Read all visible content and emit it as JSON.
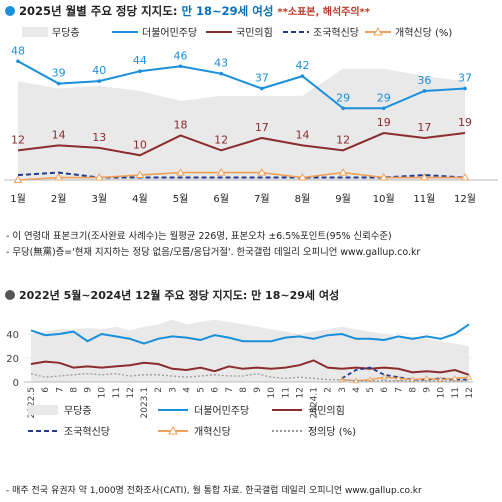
{
  "colors": {
    "none": "#e9e9e9",
    "dpk": "#1a8fdc",
    "ppp": "#8b2d2d",
    "rebuild": "#1f3a93",
    "reform": "#f0a05a",
    "justice": "#9a9a9a",
    "title_blue": "#0d6fb8",
    "title_red": "#c0392b"
  },
  "top_section": {
    "title_bullet_icon": "dot-icon",
    "title": "2025년 월별 주요 정당 지지도: ",
    "title_highlight": "만 18~29세 여성",
    "title_warning": "**소표본, 해석주의**",
    "notes": [
      "- 이 연령대 표본크기(조사완료 사례수)는 월평균 226명, 표본오차 ±6.5%포인트(95% 신뢰수준)",
      "- 무당(無黨)층='현재 지지하는 정당 없음/모름/응답거절'. 한국갤럽 데일리 오피니언 www.gallup.co.kr"
    ]
  },
  "bottom_section": {
    "title_bullet_icon": "dot-icon",
    "title": "2022년 5월~2024년 12월 주요 정당 지지도: 만 18~29세 여성",
    "note": "- 매주 전국 유권자 약 1,000명 전화조사(CATI), 월 통합 자료. 한국갤럽 데일리 오피니언 www.gallup.co.kr"
  },
  "chart_data": [
    {
      "type": "line",
      "title": "2025년 월별 주요 정당 지지도: 만 18~29세 여성",
      "categories": [
        "1월",
        "2월",
        "3월",
        "4월",
        "5월",
        "6월",
        "7월",
        "8월",
        "9월",
        "10월",
        "11월",
        "12월"
      ],
      "legend": [
        "무당층",
        "더불어민주당",
        "국민의힘",
        "조국혁신당",
        "개혁신당 (%)"
      ],
      "legend_position": "top",
      "ylim": [
        0,
        55
      ],
      "grid": false,
      "series": [
        {
          "name": "무당층",
          "kind": "area",
          "values": [
            40,
            37,
            38,
            36,
            32,
            34,
            34,
            34,
            45,
            45,
            42,
            40
          ]
        },
        {
          "name": "더불어민주당",
          "values": [
            48,
            39,
            40,
            44,
            46,
            43,
            37,
            42,
            29,
            29,
            36,
            37
          ],
          "labels": true
        },
        {
          "name": "국민의힘",
          "values": [
            12,
            14,
            13,
            10,
            18,
            12,
            17,
            14,
            12,
            19,
            17,
            19
          ],
          "labels": true
        },
        {
          "name": "조국혁신당",
          "values": [
            2,
            3,
            1,
            1,
            1,
            1,
            1,
            1,
            1,
            1,
            2,
            1
          ]
        },
        {
          "name": "개혁신당 (%)",
          "values": [
            0,
            1,
            1,
            2,
            3,
            3,
            3,
            1,
            3,
            1,
            1,
            1
          ]
        }
      ]
    },
    {
      "type": "line",
      "title": "2022년 5월~2024년 12월 주요 정당 지지도: 만 18~29세 여성",
      "categories": [
        "2022.5",
        "6",
        "7",
        "8",
        "9",
        "10",
        "11",
        "12",
        "2023.1",
        "2",
        "3",
        "4",
        "5",
        "6",
        "7",
        "8",
        "9",
        "10",
        "11",
        "12",
        "2024.1",
        "2",
        "3",
        "4",
        "5",
        "6",
        "7",
        "8",
        "9",
        "10",
        "11",
        "12"
      ],
      "y_ticks": [
        0,
        20,
        40
      ],
      "ylim": [
        0,
        55
      ],
      "legend": [
        "무당층",
        "더불어민주당",
        "국민의힘",
        "조국혁신당",
        "개혁신당",
        "정의당 (%)"
      ],
      "legend_position": "bottom",
      "series": [
        {
          "name": "무당층",
          "kind": "area",
          "values": [
            40,
            42,
            44,
            44,
            45,
            44,
            46,
            43,
            46,
            48,
            52,
            48,
            50,
            52,
            50,
            48,
            46,
            44,
            42,
            40,
            42,
            44,
            46,
            44,
            42,
            40,
            38,
            38,
            36,
            34,
            32,
            30
          ]
        },
        {
          "name": "더불어민주당",
          "values": [
            43,
            39,
            40,
            42,
            34,
            40,
            38,
            36,
            32,
            36,
            38,
            37,
            35,
            39,
            37,
            34,
            34,
            34,
            37,
            38,
            36,
            39,
            40,
            36,
            36,
            35,
            38,
            36,
            38,
            36,
            40,
            48
          ]
        },
        {
          "name": "국민의힘",
          "values": [
            15,
            17,
            16,
            12,
            13,
            12,
            13,
            14,
            16,
            15,
            11,
            10,
            12,
            9,
            13,
            11,
            12,
            11,
            12,
            14,
            18,
            12,
            11,
            12,
            11,
            12,
            11,
            8,
            9,
            8,
            10,
            6
          ]
        },
        {
          "name": "조국혁신당",
          "values": [
            null,
            null,
            null,
            null,
            null,
            null,
            null,
            null,
            null,
            null,
            null,
            null,
            null,
            null,
            null,
            null,
            null,
            null,
            null,
            null,
            null,
            null,
            3,
            10,
            12,
            6,
            4,
            2,
            2,
            3,
            2,
            2
          ]
        },
        {
          "name": "개혁신당",
          "values": [
            null,
            null,
            null,
            null,
            null,
            null,
            null,
            null,
            null,
            null,
            null,
            null,
            null,
            null,
            null,
            null,
            null,
            null,
            null,
            null,
            null,
            null,
            2,
            1,
            2,
            4,
            3,
            2,
            3,
            2,
            3,
            4
          ]
        },
        {
          "name": "정의당 (%)",
          "values": [
            7,
            4,
            5,
            6,
            7,
            6,
            7,
            5,
            6,
            6,
            5,
            4,
            5,
            6,
            5,
            5,
            7,
            4,
            3,
            4,
            3,
            2,
            2,
            1,
            1,
            1,
            1,
            1,
            1,
            1,
            1,
            1
          ]
        }
      ]
    }
  ]
}
